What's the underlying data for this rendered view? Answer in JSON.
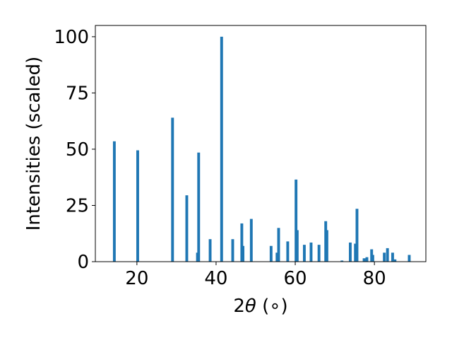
{
  "chart_data": {
    "type": "bar",
    "title": "",
    "xlabel": "2θ (∘)",
    "xlabel_parts": {
      "prefix": "2",
      "theta": "θ",
      "suffix": " (∘)"
    },
    "ylabel": "Intensities (scaled)",
    "xlim": [
      9.5,
      93
    ],
    "ylim": [
      0,
      105
    ],
    "xticks": [
      20,
      40,
      60,
      80
    ],
    "yticks": [
      0,
      25,
      50,
      75,
      100
    ],
    "grid": false,
    "bar_color": "#1f77b4",
    "bar_width_deg": 0.7,
    "series": [
      {
        "x": [
          14.3,
          20.2,
          29.0,
          32.6,
          35.3,
          35.6,
          38.5,
          41.4,
          44.2,
          46.5,
          46.8,
          48.9,
          53.9,
          55.4,
          55.8,
          58.1,
          60.2,
          60.5,
          62.3,
          64.0,
          66.0,
          67.7,
          68.0,
          71.8,
          73.9,
          75.2,
          75.6,
          77.4,
          78.1,
          79.3,
          79.6,
          82.5,
          83.3,
          84.6,
          85.2,
          88.8
        ],
        "values": [
          53.5,
          49.5,
          64,
          29.5,
          4,
          48.5,
          10,
          100,
          10,
          17,
          7,
          19,
          7,
          4,
          15,
          9,
          36.5,
          14,
          7.5,
          8.5,
          7.5,
          18,
          14,
          0.5,
          8.5,
          8,
          23.5,
          1.5,
          2,
          5.5,
          3,
          4,
          6,
          4,
          1,
          3
        ]
      }
    ]
  }
}
